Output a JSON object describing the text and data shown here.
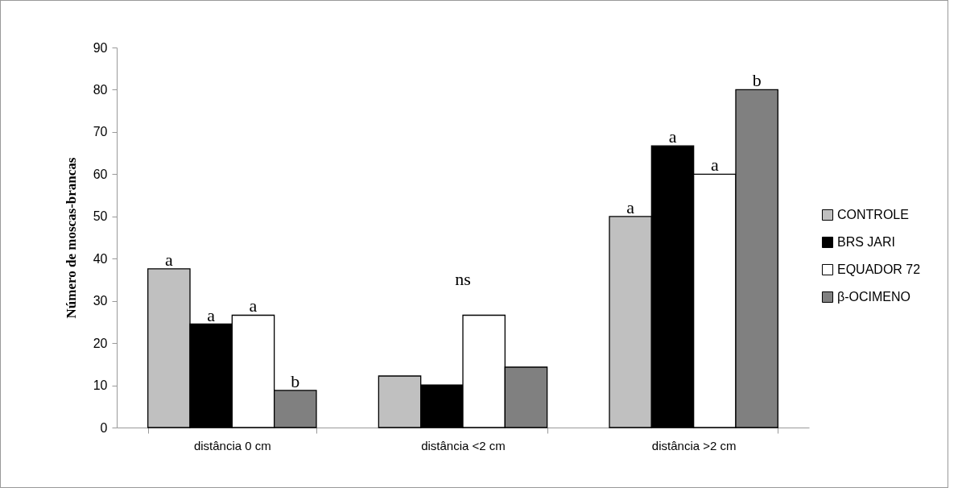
{
  "chart_data": {
    "type": "bar",
    "ylabel": "Número de moscas-brancas",
    "categories": [
      "distância 0 cm",
      "distância <2 cm",
      "distância >2 cm"
    ],
    "series": [
      {
        "name": "CONTROLE",
        "color": "#c0c0c0",
        "values": [
          37.6,
          12.2,
          50
        ],
        "value_labels": [
          "a",
          null,
          "a"
        ]
      },
      {
        "name": "BRS JARI",
        "color": "#000000",
        "values": [
          24.5,
          10.1,
          66.7
        ],
        "value_labels": [
          "a",
          null,
          "a"
        ]
      },
      {
        "name": "EQUADOR 72",
        "color": "#ffffff",
        "values": [
          26.6,
          26.6,
          60
        ],
        "value_labels": [
          "a",
          null,
          "a"
        ]
      },
      {
        "name": "β-OCIMENO",
        "color": "#808080",
        "values": [
          8.8,
          14.3,
          80
        ],
        "value_labels": [
          "b",
          null,
          "b"
        ]
      }
    ],
    "annotations": [
      "ns"
    ],
    "ylim": [
      0,
      90
    ],
    "yticks": [
      0,
      10,
      20,
      30,
      40,
      50,
      60,
      70,
      80,
      90
    ],
    "grid": false,
    "legend": "right"
  }
}
